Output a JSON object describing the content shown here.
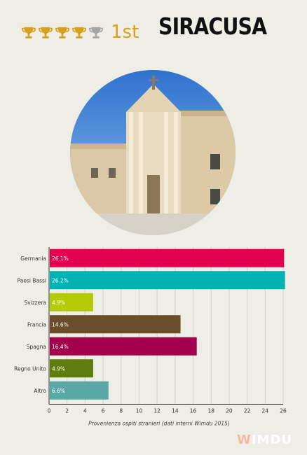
{
  "header": {
    "rank": "1st",
    "city": "SIRACUSA",
    "trophies": {
      "icon": "trophy-icon",
      "total": 5,
      "filled": 4,
      "filled_color": "#d6a21e",
      "empty_color": "#a4a4a4"
    }
  },
  "chart_data": {
    "type": "bar",
    "orientation": "horizontal",
    "categories": [
      "Germania",
      "Paesi Bassi",
      "Svizzera",
      "Francia",
      "Spagna",
      "Regno Unito",
      "Altro"
    ],
    "values": [
      26.1,
      26.2,
      4.9,
      14.6,
      16.4,
      4.9,
      6.6
    ],
    "value_labels": [
      "26.1%",
      "26.2%",
      "4.9%",
      "14.6%",
      "16.4%",
      "4.9%",
      "6.6%"
    ],
    "colors": [
      "#e2004f",
      "#00b3b3",
      "#b3cb06",
      "#6a4e2a",
      "#a3004e",
      "#5f7d0e",
      "#5aa9a6"
    ],
    "xlim": [
      0,
      26
    ],
    "xticks": [
      0,
      2,
      4,
      6,
      8,
      10,
      12,
      14,
      16,
      18,
      20,
      22,
      24,
      26
    ],
    "xlabel": "Provenienza ospiti stranieri (dati interni Wimdu 2015)",
    "grid": true
  },
  "logo": {
    "text": "WIMDU",
    "color": "#f6b9a6"
  }
}
